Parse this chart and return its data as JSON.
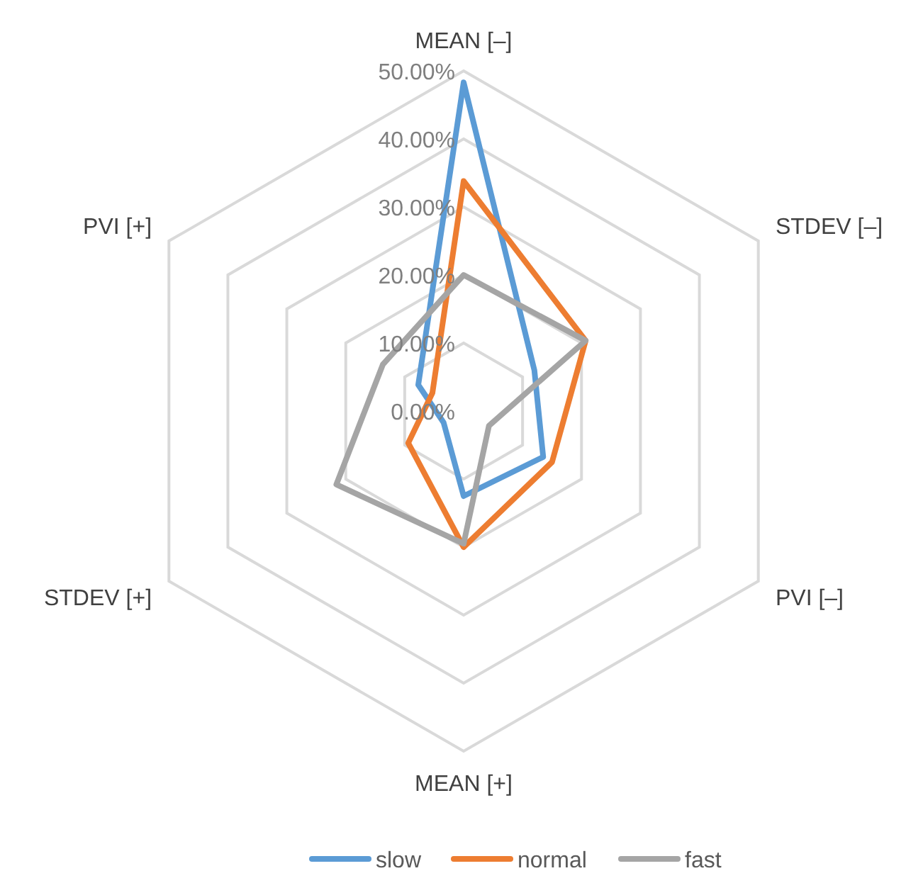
{
  "chart_data": {
    "type": "radar",
    "categories": [
      "MEAN [–]",
      "STDEV [–]",
      "PVI [–]",
      "MEAN [+]",
      "STDEV [+]",
      "PVI [+]"
    ],
    "ylim": [
      0,
      50
    ],
    "yticks": [
      {
        "value": 0,
        "label": "0.00%"
      },
      {
        "value": 10,
        "label": "10.00%"
      },
      {
        "value": 20,
        "label": "20.00%"
      },
      {
        "value": 30,
        "label": "30.00%"
      },
      {
        "value": 40,
        "label": "40.00%"
      },
      {
        "value": 50,
        "label": "50.00%"
      }
    ],
    "grid": true,
    "legend": "bottom",
    "series": [
      {
        "name": "slow",
        "color": "#5b9bd5",
        "values": [
          48.3,
          12,
          13.5,
          12.5,
          3.4,
          7.7
        ]
      },
      {
        "name": "normal",
        "color": "#ed7d31",
        "values": [
          33.8,
          20.7,
          15,
          20,
          9.4,
          5.3
        ]
      },
      {
        "name": "fast",
        "color": "#a5a5a5",
        "values": [
          20,
          20.7,
          4.3,
          19.5,
          21.6,
          13.7
        ]
      }
    ]
  }
}
